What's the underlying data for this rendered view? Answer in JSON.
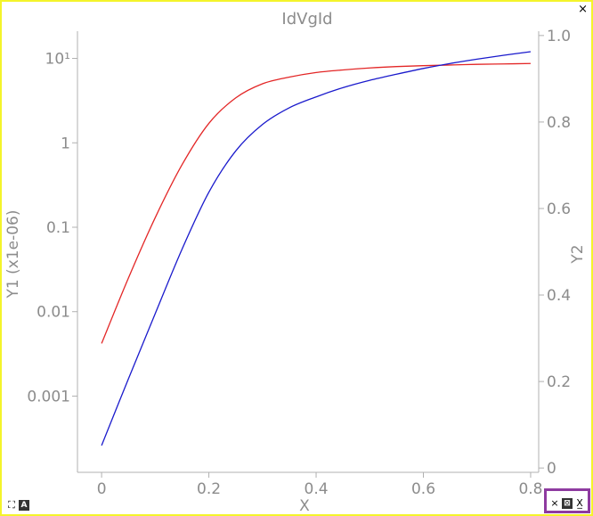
{
  "chart_data": {
    "type": "line",
    "title": "IdVgId",
    "xlabel": "X",
    "y1label": "Y1 (x1e-06)",
    "y2label": "Y2",
    "xlim": [
      -0.045,
      0.815
    ],
    "y1_scale": "log",
    "y1lim": [
      0.000125,
      21
    ],
    "y2lim": [
      -0.01,
      1.01
    ],
    "x_ticks": [
      "0",
      "0.2",
      "0.4",
      "0.6",
      "0.8"
    ],
    "x_tick_values": [
      0,
      0.2,
      0.4,
      0.6,
      0.8
    ],
    "y1_ticks": [
      "0.001",
      "0.01",
      "0.1",
      "1",
      "10¹"
    ],
    "y1_tick_values": [
      0.001,
      0.01,
      0.1,
      1,
      10
    ],
    "y2_ticks": [
      "0",
      "0.2",
      "0.4",
      "0.6",
      "0.8",
      "1.0"
    ],
    "y2_tick_values": [
      0,
      0.2,
      0.4,
      0.6,
      0.8,
      1.0
    ],
    "grid": false,
    "series": [
      {
        "color": "#e32626",
        "axis": "y1",
        "x": [
          0,
          0.05,
          0.1,
          0.15,
          0.2,
          0.25,
          0.3,
          0.35,
          0.4,
          0.45,
          0.5,
          0.55,
          0.6,
          0.65,
          0.7,
          0.75,
          0.8
        ],
        "y": [
          0.0042,
          0.025,
          0.13,
          0.55,
          1.7,
          3.4,
          5.0,
          6.0,
          6.8,
          7.3,
          7.7,
          8.0,
          8.2,
          8.35,
          8.5,
          8.6,
          8.7
        ]
      },
      {
        "color": "#1a1acc",
        "axis": "y1",
        "x": [
          0,
          0.05,
          0.1,
          0.15,
          0.2,
          0.25,
          0.3,
          0.35,
          0.4,
          0.45,
          0.5,
          0.55,
          0.6,
          0.65,
          0.7,
          0.75,
          0.8
        ],
        "y": [
          0.00026,
          0.0016,
          0.0095,
          0.055,
          0.26,
          0.8,
          1.65,
          2.6,
          3.5,
          4.5,
          5.5,
          6.5,
          7.6,
          8.7,
          9.8,
          10.9,
          12.0
        ]
      }
    ]
  },
  "tools": {
    "close_icon": "×",
    "expand_icon": "⛶",
    "annotate_icon": "A",
    "bottom": [
      "×",
      "⊠",
      "X̲"
    ]
  }
}
